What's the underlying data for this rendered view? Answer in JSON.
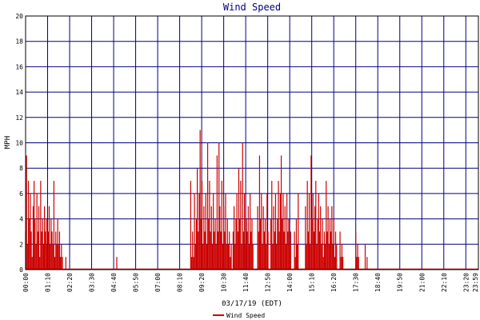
{
  "chart_data": {
    "type": "bar",
    "title": "Wind Speed",
    "xlabel": "03/17/19 (EDT)",
    "ylabel": "MPH",
    "ylim": [
      0,
      20
    ],
    "yticks": [
      "0",
      "2",
      "4",
      "6",
      "8",
      "10",
      "12",
      "14",
      "16",
      "18",
      "20"
    ],
    "xticks": [
      "00:00",
      "01:10",
      "02:20",
      "03:30",
      "04:40",
      "05:50",
      "07:00",
      "08:10",
      "09:20",
      "10:30",
      "11:40",
      "12:50",
      "14:00",
      "15:10",
      "16:20",
      "17:30",
      "18:40",
      "19:50",
      "21:00",
      "22:10",
      "23:20",
      "23:59"
    ],
    "x_unit": "minutes since 00:00",
    "xlim": [
      0,
      1440
    ],
    "grid": true,
    "legend": "bottom-center",
    "series": [
      {
        "name": "Wind Speed",
        "color": "#cc0000",
        "points": [
          [
            0,
            3
          ],
          [
            3,
            9
          ],
          [
            6,
            2
          ],
          [
            9,
            7
          ],
          [
            12,
            4
          ],
          [
            15,
            6
          ],
          [
            18,
            3
          ],
          [
            21,
            1
          ],
          [
            24,
            5
          ],
          [
            27,
            7
          ],
          [
            30,
            4
          ],
          [
            33,
            2
          ],
          [
            36,
            6
          ],
          [
            39,
            3
          ],
          [
            42,
            5
          ],
          [
            45,
            1
          ],
          [
            48,
            7
          ],
          [
            51,
            3
          ],
          [
            54,
            4
          ],
          [
            57,
            2
          ],
          [
            60,
            5
          ],
          [
            63,
            3
          ],
          [
            66,
            4
          ],
          [
            69,
            2
          ],
          [
            72,
            3
          ],
          [
            75,
            5
          ],
          [
            78,
            2
          ],
          [
            81,
            4
          ],
          [
            84,
            3
          ],
          [
            87,
            2
          ],
          [
            90,
            7
          ],
          [
            93,
            1
          ],
          [
            96,
            3
          ],
          [
            99,
            2
          ],
          [
            102,
            4
          ],
          [
            105,
            2
          ],
          [
            108,
            3
          ],
          [
            111,
            1
          ],
          [
            114,
            2
          ],
          [
            117,
            1
          ],
          [
            120,
            0
          ],
          [
            128,
            1
          ],
          [
            290,
            1
          ],
          [
            293,
            0
          ],
          [
            525,
            7
          ],
          [
            528,
            1
          ],
          [
            531,
            3
          ],
          [
            534,
            1
          ],
          [
            537,
            6
          ],
          [
            540,
            2
          ],
          [
            543,
            4
          ],
          [
            546,
            8
          ],
          [
            549,
            3
          ],
          [
            552,
            6
          ],
          [
            555,
            11
          ],
          [
            558,
            4
          ],
          [
            561,
            7
          ],
          [
            564,
            2
          ],
          [
            567,
            5
          ],
          [
            570,
            3
          ],
          [
            573,
            6
          ],
          [
            576,
            2
          ],
          [
            579,
            10
          ],
          [
            582,
            4
          ],
          [
            585,
            7
          ],
          [
            588,
            3
          ],
          [
            591,
            5
          ],
          [
            594,
            2
          ],
          [
            597,
            6
          ],
          [
            600,
            3
          ],
          [
            603,
            4
          ],
          [
            606,
            2
          ],
          [
            609,
            9
          ],
          [
            612,
            3
          ],
          [
            615,
            10
          ],
          [
            618,
            5
          ],
          [
            621,
            3
          ],
          [
            624,
            7
          ],
          [
            627,
            2
          ],
          [
            630,
            5
          ],
          [
            633,
            3
          ],
          [
            636,
            6
          ],
          [
            639,
            2
          ],
          [
            642,
            4
          ],
          [
            645,
            2
          ],
          [
            648,
            3
          ],
          [
            651,
            1
          ],
          [
            654,
            2
          ],
          [
            660,
            3
          ],
          [
            663,
            5
          ],
          [
            666,
            2
          ],
          [
            669,
            4
          ],
          [
            672,
            6
          ],
          [
            675,
            3
          ],
          [
            678,
            8
          ],
          [
            681,
            4
          ],
          [
            684,
            7
          ],
          [
            687,
            2
          ],
          [
            690,
            10
          ],
          [
            693,
            3
          ],
          [
            696,
            6
          ],
          [
            699,
            2
          ],
          [
            702,
            4
          ],
          [
            705,
            3
          ],
          [
            708,
            5
          ],
          [
            711,
            2
          ],
          [
            714,
            6
          ],
          [
            717,
            3
          ],
          [
            720,
            4
          ],
          [
            723,
            2
          ],
          [
            738,
            5
          ],
          [
            741,
            3
          ],
          [
            744,
            9
          ],
          [
            747,
            4
          ],
          [
            750,
            6
          ],
          [
            753,
            2
          ],
          [
            756,
            5
          ],
          [
            759,
            3
          ],
          [
            762,
            4
          ],
          [
            765,
            2
          ],
          [
            768,
            6
          ],
          [
            771,
            3
          ],
          [
            780,
            4
          ],
          [
            783,
            7
          ],
          [
            786,
            2
          ],
          [
            789,
            5
          ],
          [
            792,
            3
          ],
          [
            795,
            6
          ],
          [
            798,
            2
          ],
          [
            801,
            4
          ],
          [
            804,
            7
          ],
          [
            807,
            3
          ],
          [
            810,
            6
          ],
          [
            813,
            9
          ],
          [
            816,
            4
          ],
          [
            819,
            6
          ],
          [
            822,
            3
          ],
          [
            825,
            5
          ],
          [
            828,
            2
          ],
          [
            831,
            6
          ],
          [
            834,
            3
          ],
          [
            837,
            4
          ],
          [
            840,
            2
          ],
          [
            843,
            3
          ],
          [
            855,
            3
          ],
          [
            858,
            1
          ],
          [
            861,
            4
          ],
          [
            864,
            2
          ],
          [
            867,
            6
          ],
          [
            890,
            5
          ],
          [
            893,
            2
          ],
          [
            896,
            7
          ],
          [
            899,
            3
          ],
          [
            902,
            6
          ],
          [
            905,
            2
          ],
          [
            908,
            9
          ],
          [
            911,
            4
          ],
          [
            914,
            6
          ],
          [
            917,
            3
          ],
          [
            920,
            5
          ],
          [
            923,
            7
          ],
          [
            926,
            2
          ],
          [
            929,
            4
          ],
          [
            932,
            6
          ],
          [
            935,
            3
          ],
          [
            938,
            5
          ],
          [
            941,
            2
          ],
          [
            944,
            4
          ],
          [
            947,
            1
          ],
          [
            950,
            3
          ],
          [
            953,
            2
          ],
          [
            956,
            7
          ],
          [
            959,
            3
          ],
          [
            962,
            5
          ],
          [
            965,
            2
          ],
          [
            968,
            4
          ],
          [
            971,
            3
          ],
          [
            974,
            5
          ],
          [
            977,
            2
          ],
          [
            980,
            4
          ],
          [
            983,
            1
          ],
          [
            986,
            3
          ],
          [
            989,
            2
          ],
          [
            1000,
            3
          ],
          [
            1003,
            1
          ],
          [
            1006,
            2
          ],
          [
            1009,
            1
          ],
          [
            1050,
            3
          ],
          [
            1053,
            1
          ],
          [
            1056,
            2
          ],
          [
            1059,
            1
          ],
          [
            1080,
            2
          ],
          [
            1083,
            0
          ],
          [
            1086,
            1
          ]
        ]
      }
    ]
  }
}
